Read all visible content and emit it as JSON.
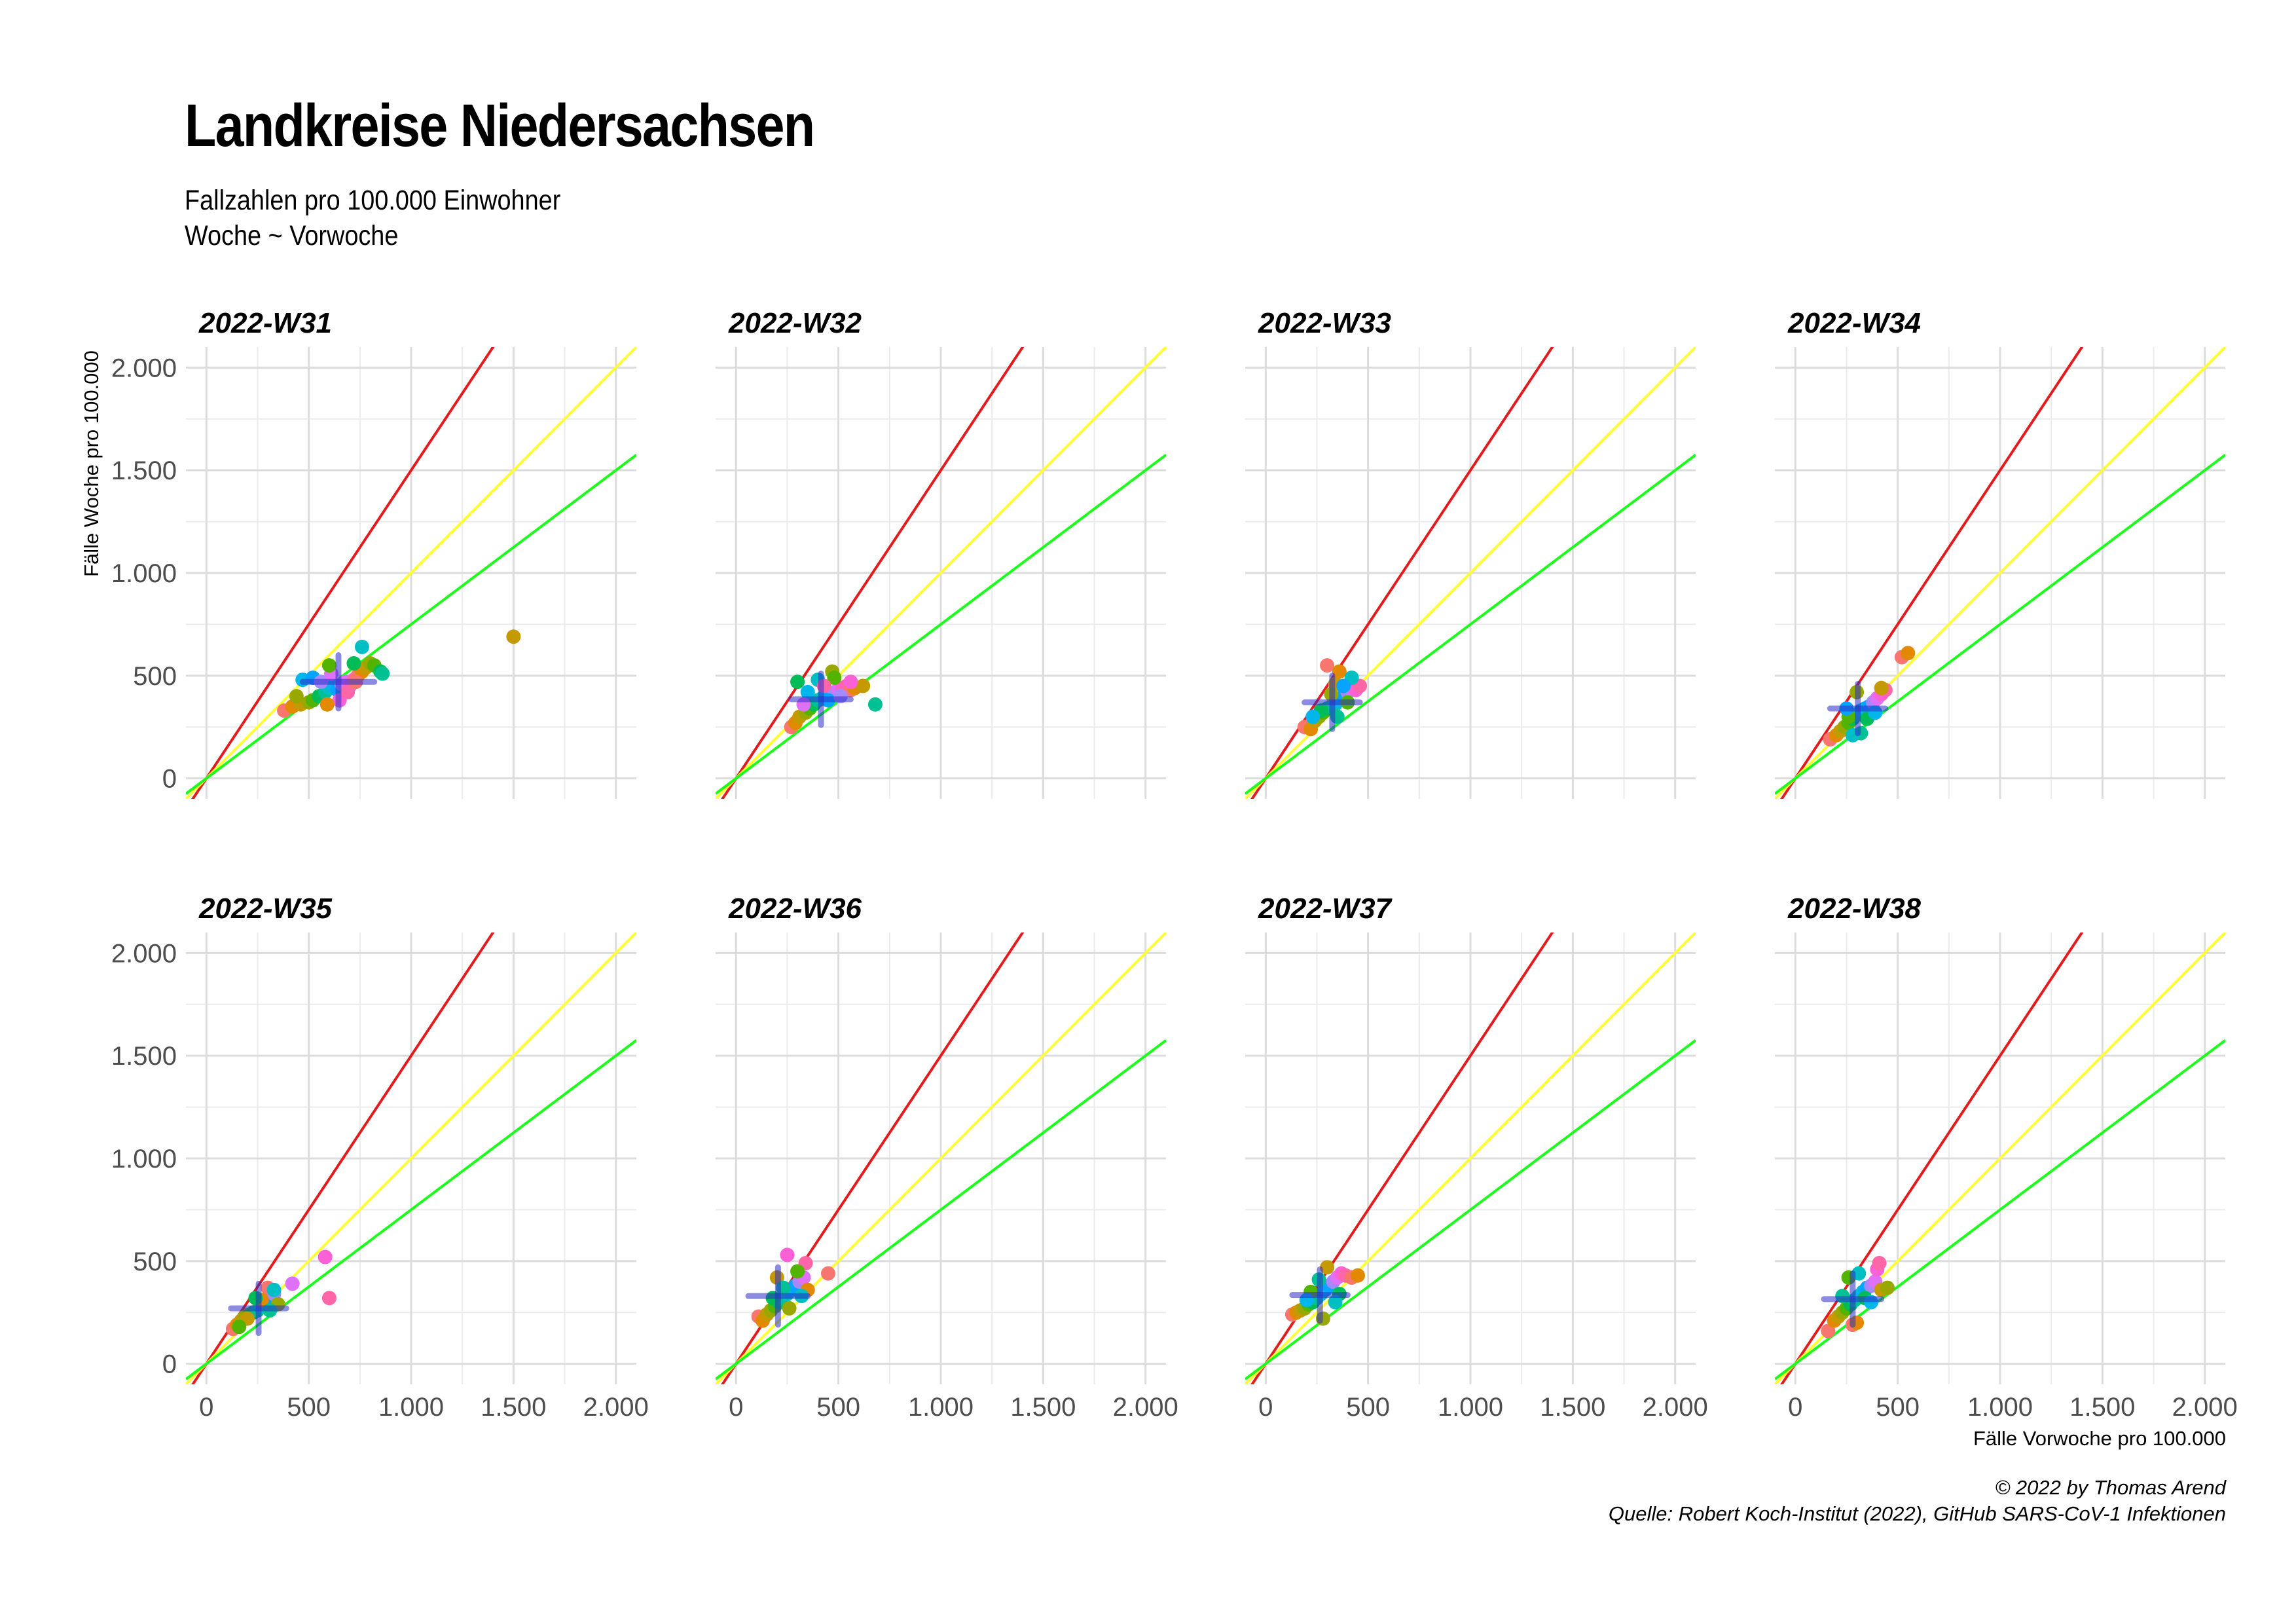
{
  "title": "Landkreise Niedersachsen",
  "subtitle": [
    "Fallzahlen pro 100.000 Einwohner",
    "Woche ~ Vorwoche"
  ],
  "caption": [
    "© 2022 by Thomas Arend",
    "Quelle: Robert Koch-Institut (2022), GitHub SARS-CoV-1 Infektionen"
  ],
  "chart_data": {
    "type": "scatter",
    "xlabel": "Fälle Vorwoche pro 100.000",
    "ylabel": "Fälle Woche pro 100.000",
    "xlim": [
      -100,
      2100
    ],
    "ylim": [
      -100,
      2100
    ],
    "x_ticks": [
      0,
      500,
      1000,
      1500,
      2000
    ],
    "y_ticks": [
      0,
      500,
      1000,
      1500,
      2000
    ],
    "tick_labels": [
      "0",
      "500",
      "1.000",
      "1.500",
      "2.000"
    ],
    "grid": true,
    "reference_lines": [
      {
        "slope": 1.5,
        "color": "#e41a1c"
      },
      {
        "slope": 1.0,
        "color": "#ffff33"
      },
      {
        "slope": 0.75,
        "color": "#1aff1a"
      }
    ],
    "point_colors": [
      "#F8766D",
      "#E38900",
      "#C49A00",
      "#99A800",
      "#53B400",
      "#00BC56",
      "#00C094",
      "#00BFC4",
      "#00B6EB",
      "#06A4FF",
      "#A58AFF",
      "#DF70F8",
      "#FB61D7",
      "#FF66A8"
    ],
    "panels": [
      {
        "label": "2022-W31",
        "cross": {
          "x": [
            470,
            820
          ],
          "y": [
            340,
            600
          ]
        },
        "points": [
          [
            380,
            330
          ],
          [
            420,
            350
          ],
          [
            460,
            360
          ],
          [
            500,
            370
          ],
          [
            520,
            380
          ],
          [
            550,
            400
          ],
          [
            580,
            420
          ],
          [
            600,
            440
          ],
          [
            620,
            450
          ],
          [
            640,
            430
          ],
          [
            660,
            460
          ],
          [
            680,
            470
          ],
          [
            700,
            450
          ],
          [
            720,
            480
          ],
          [
            740,
            500
          ],
          [
            760,
            520
          ],
          [
            780,
            540
          ],
          [
            800,
            560
          ],
          [
            820,
            550
          ],
          [
            850,
            520
          ],
          [
            860,
            510
          ],
          [
            760,
            640
          ],
          [
            470,
            480
          ],
          [
            520,
            490
          ],
          [
            560,
            470
          ],
          [
            610,
            510
          ],
          [
            650,
            380
          ],
          [
            690,
            420
          ],
          [
            730,
            470
          ],
          [
            590,
            360
          ],
          [
            1500,
            690
          ],
          [
            440,
            400
          ],
          [
            600,
            550
          ],
          [
            720,
            560
          ]
        ]
      },
      {
        "label": "2022-W32",
        "cross": {
          "x": [
            270,
            560
          ],
          "y": [
            260,
            510
          ]
        },
        "points": [
          [
            270,
            250
          ],
          [
            290,
            270
          ],
          [
            310,
            300
          ],
          [
            340,
            320
          ],
          [
            360,
            340
          ],
          [
            380,
            360
          ],
          [
            400,
            380
          ],
          [
            420,
            390
          ],
          [
            440,
            400
          ],
          [
            460,
            410
          ],
          [
            480,
            420
          ],
          [
            500,
            430
          ],
          [
            520,
            440
          ],
          [
            540,
            450
          ],
          [
            560,
            430
          ],
          [
            580,
            440
          ],
          [
            620,
            450
          ],
          [
            470,
            520
          ],
          [
            480,
            490
          ],
          [
            300,
            470
          ],
          [
            680,
            360
          ],
          [
            400,
            480
          ],
          [
            350,
            420
          ],
          [
            450,
            380
          ],
          [
            510,
            400
          ],
          [
            330,
            360
          ],
          [
            560,
            470
          ],
          [
            430,
            450
          ]
        ]
      },
      {
        "label": "2022-W33",
        "cross": {
          "x": [
            190,
            460
          ],
          "y": [
            240,
            500
          ]
        },
        "points": [
          [
            190,
            250
          ],
          [
            220,
            240
          ],
          [
            240,
            280
          ],
          [
            260,
            300
          ],
          [
            280,
            320
          ],
          [
            300,
            340
          ],
          [
            320,
            350
          ],
          [
            340,
            360
          ],
          [
            360,
            380
          ],
          [
            380,
            400
          ],
          [
            400,
            420
          ],
          [
            420,
            440
          ],
          [
            440,
            430
          ],
          [
            460,
            450
          ],
          [
            300,
            550
          ],
          [
            360,
            520
          ],
          [
            340,
            460
          ],
          [
            320,
            410
          ],
          [
            400,
            370
          ],
          [
            270,
            330
          ],
          [
            350,
            300
          ],
          [
            420,
            490
          ],
          [
            230,
            300
          ],
          [
            380,
            450
          ]
        ]
      },
      {
        "label": "2022-W34",
        "cross": {
          "x": [
            170,
            440
          ],
          "y": [
            220,
            460
          ]
        },
        "points": [
          [
            170,
            190
          ],
          [
            200,
            210
          ],
          [
            220,
            230
          ],
          [
            240,
            250
          ],
          [
            260,
            270
          ],
          [
            280,
            290
          ],
          [
            300,
            310
          ],
          [
            320,
            330
          ],
          [
            340,
            340
          ],
          [
            360,
            350
          ],
          [
            380,
            370
          ],
          [
            400,
            390
          ],
          [
            420,
            410
          ],
          [
            440,
            430
          ],
          [
            520,
            590
          ],
          [
            550,
            610
          ],
          [
            420,
            440
          ],
          [
            300,
            420
          ],
          [
            260,
            300
          ],
          [
            350,
            290
          ],
          [
            320,
            220
          ],
          [
            280,
            210
          ],
          [
            390,
            320
          ],
          [
            250,
            340
          ]
        ]
      },
      {
        "label": "2022-W35",
        "cross": {
          "x": [
            120,
            390
          ],
          "y": [
            150,
            390
          ]
        },
        "points": [
          [
            130,
            170
          ],
          [
            150,
            190
          ],
          [
            170,
            210
          ],
          [
            190,
            230
          ],
          [
            210,
            240
          ],
          [
            230,
            250
          ],
          [
            250,
            260
          ],
          [
            270,
            280
          ],
          [
            290,
            300
          ],
          [
            310,
            320
          ],
          [
            330,
            340
          ],
          [
            420,
            390
          ],
          [
            580,
            520
          ],
          [
            600,
            320
          ],
          [
            300,
            370
          ],
          [
            270,
            310
          ],
          [
            200,
            220
          ],
          [
            350,
            290
          ],
          [
            160,
            180
          ],
          [
            240,
            320
          ],
          [
            310,
            260
          ],
          [
            330,
            360
          ]
        ]
      },
      {
        "label": "2022-W36",
        "cross": {
          "x": [
            60,
            350
          ],
          "y": [
            190,
            470
          ]
        },
        "points": [
          [
            110,
            230
          ],
          [
            130,
            210
          ],
          [
            150,
            240
          ],
          [
            170,
            260
          ],
          [
            190,
            280
          ],
          [
            210,
            300
          ],
          [
            230,
            320
          ],
          [
            250,
            340
          ],
          [
            270,
            360
          ],
          [
            290,
            380
          ],
          [
            310,
            400
          ],
          [
            330,
            420
          ],
          [
            250,
            530
          ],
          [
            340,
            490
          ],
          [
            450,
            440
          ],
          [
            350,
            360
          ],
          [
            200,
            420
          ],
          [
            260,
            270
          ],
          [
            300,
            450
          ],
          [
            180,
            320
          ],
          [
            230,
            370
          ],
          [
            320,
            330
          ]
        ]
      },
      {
        "label": "2022-W37",
        "cross": {
          "x": [
            130,
            400
          ],
          "y": [
            210,
            460
          ]
        },
        "points": [
          [
            130,
            240
          ],
          [
            150,
            250
          ],
          [
            170,
            260
          ],
          [
            190,
            270
          ],
          [
            210,
            290
          ],
          [
            230,
            300
          ],
          [
            250,
            320
          ],
          [
            270,
            340
          ],
          [
            290,
            360
          ],
          [
            310,
            380
          ],
          [
            330,
            400
          ],
          [
            350,
            420
          ],
          [
            370,
            440
          ],
          [
            390,
            430
          ],
          [
            420,
            420
          ],
          [
            450,
            430
          ],
          [
            300,
            470
          ],
          [
            280,
            220
          ],
          [
            220,
            350
          ],
          [
            360,
            340
          ],
          [
            260,
            410
          ],
          [
            340,
            300
          ],
          [
            200,
            310
          ]
        ]
      },
      {
        "label": "2022-W38",
        "cross": {
          "x": [
            140,
            420
          ],
          "y": [
            190,
            440
          ]
        },
        "points": [
          [
            160,
            160
          ],
          [
            190,
            210
          ],
          [
            210,
            230
          ],
          [
            230,
            250
          ],
          [
            250,
            270
          ],
          [
            270,
            290
          ],
          [
            290,
            310
          ],
          [
            310,
            330
          ],
          [
            330,
            350
          ],
          [
            350,
            370
          ],
          [
            370,
            380
          ],
          [
            390,
            400
          ],
          [
            400,
            460
          ],
          [
            410,
            490
          ],
          [
            280,
            190
          ],
          [
            300,
            200
          ],
          [
            420,
            360
          ],
          [
            450,
            370
          ],
          [
            260,
            420
          ],
          [
            340,
            320
          ],
          [
            230,
            330
          ],
          [
            310,
            440
          ],
          [
            370,
            300
          ]
        ]
      }
    ]
  }
}
